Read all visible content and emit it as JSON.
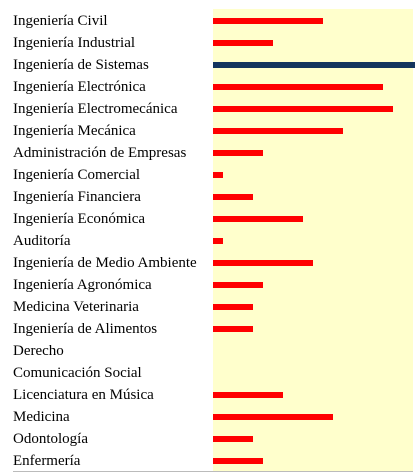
{
  "chart_data": {
    "type": "bar",
    "orientation": "horizontal",
    "categories": [
      "Ingeniería Civil",
      "Ingeniería Industrial",
      "Ingeniería de Sistemas",
      "Ingeniería Electrónica",
      "Ingeniería Electromecánica",
      "Ingeniería Mecánica",
      "Administración de Empresas",
      "Ingeniería Comercial",
      "Ingeniería Financiera",
      "Ingeniería Económica",
      "Auditoría",
      "Ingeniería de Medio Ambiente",
      "Ingeniería Agronómica",
      "Medicina Veterinaria",
      "Ingeniería de Alimentos",
      "Derecho",
      "Comunicación Social",
      "Licenciatura en Música",
      "Medicina",
      "Odontología",
      "Enfermería"
    ],
    "values": [
      55,
      30,
      100,
      85,
      90,
      65,
      25,
      5,
      20,
      45,
      5,
      50,
      25,
      20,
      20,
      0,
      0,
      35,
      60,
      20,
      25
    ],
    "xlim": [
      0,
      100
    ],
    "highlight_index": 2,
    "grid": false,
    "legend": "none",
    "colors": {
      "bar": "#ff0000",
      "highlight": "#14355e",
      "track": "#ffffcc",
      "divider": "#bbbbbb"
    }
  }
}
